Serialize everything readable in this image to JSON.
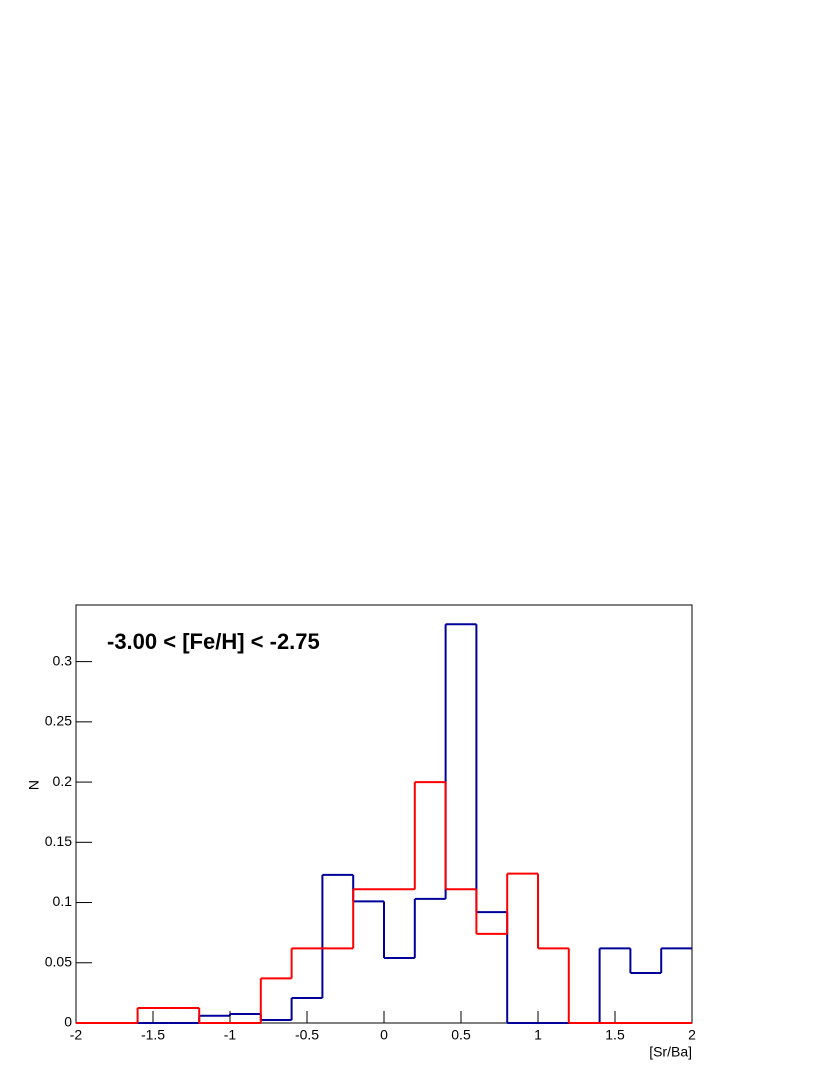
{
  "chart_data": {
    "type": "histogram",
    "annotation": "-3.00 < [Fe/H] < -2.75",
    "x_label": "[Sr/Ba]",
    "y_label": "N",
    "bins": [
      -2,
      -1.8,
      -1.6,
      -1.4,
      -1.2,
      -1,
      -0.8,
      -0.6,
      -0.4,
      -0.2,
      0,
      0.2,
      0.4,
      0.6,
      0.8,
      1,
      1.2,
      1.4,
      1.6,
      1.8,
      2
    ],
    "series": [
      {
        "color": "#000099",
        "values": [
          0,
          0,
          0,
          0,
          0.006,
          0.0075,
          0.0025,
          0.0208,
          0.123,
          0.101,
          0.054,
          0.103,
          0.331,
          0.092,
          0,
          0,
          0,
          0.062,
          0.0415,
          0.062
        ]
      },
      {
        "color": "#ff0000",
        "values": [
          0,
          0,
          0.0125,
          0.0125,
          0,
          0,
          0.037,
          0.062,
          0.062,
          0.111,
          0.111,
          0.2,
          0.111,
          0.074,
          0.124,
          0.062,
          0,
          0,
          0,
          0
        ]
      }
    ],
    "xlim": [
      -2,
      2
    ],
    "ylim": [
      0,
      0.347
    ],
    "xticks": [
      -2,
      -1.5,
      -1,
      -0.5,
      0,
      0.5,
      1,
      1.5,
      2
    ],
    "yticks": [
      0,
      0.05,
      0.1,
      0.15,
      0.2,
      0.25,
      0.3
    ]
  }
}
